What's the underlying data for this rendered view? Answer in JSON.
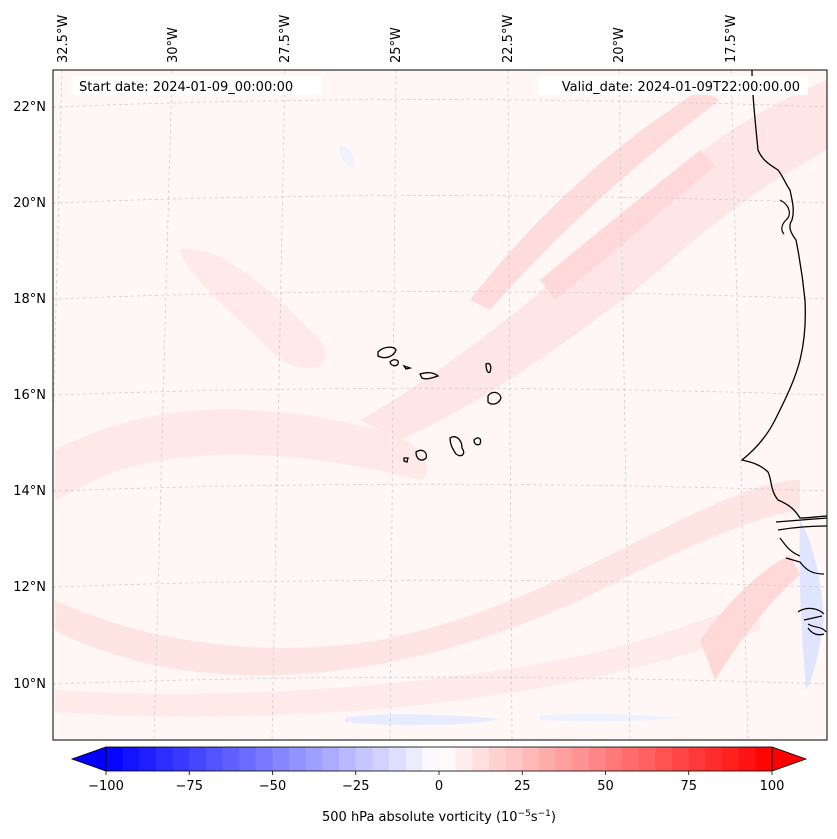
{
  "map": {
    "start_date": "Start date: 2024-01-09_00:00:00",
    "valid_date": "Valid_date: 2024-01-09T22:00:00.00",
    "lon_labels": [
      "32.5°W",
      "30°W",
      "27.5°W",
      "25°W",
      "22.5°W",
      "20°W",
      "17.5°W"
    ],
    "lat_labels": [
      "22°N",
      "20°N",
      "18°N",
      "16°N",
      "14°N",
      "12°N",
      "10°N"
    ]
  },
  "colorbar": {
    "label": "500 hPa absolute vorticity (10",
    "label_exp1": "−5",
    "label_mid": "s",
    "label_exp2": "−1",
    "label_close": ")",
    "min": -100,
    "max": 100,
    "ticks": [
      "−100",
      "−75",
      "−50",
      "−25",
      "0",
      "25",
      "50",
      "75",
      "100"
    ],
    "low_color": "#0000ff",
    "mid_color": "#ffffff",
    "high_color": "#ff0000"
  },
  "colors": {
    "background": "#fff6f6",
    "positive_band": "#ffe3e3",
    "strong_band": "#ffd2d2",
    "negative_band": "#e8ecff",
    "coast": "#000000"
  }
}
